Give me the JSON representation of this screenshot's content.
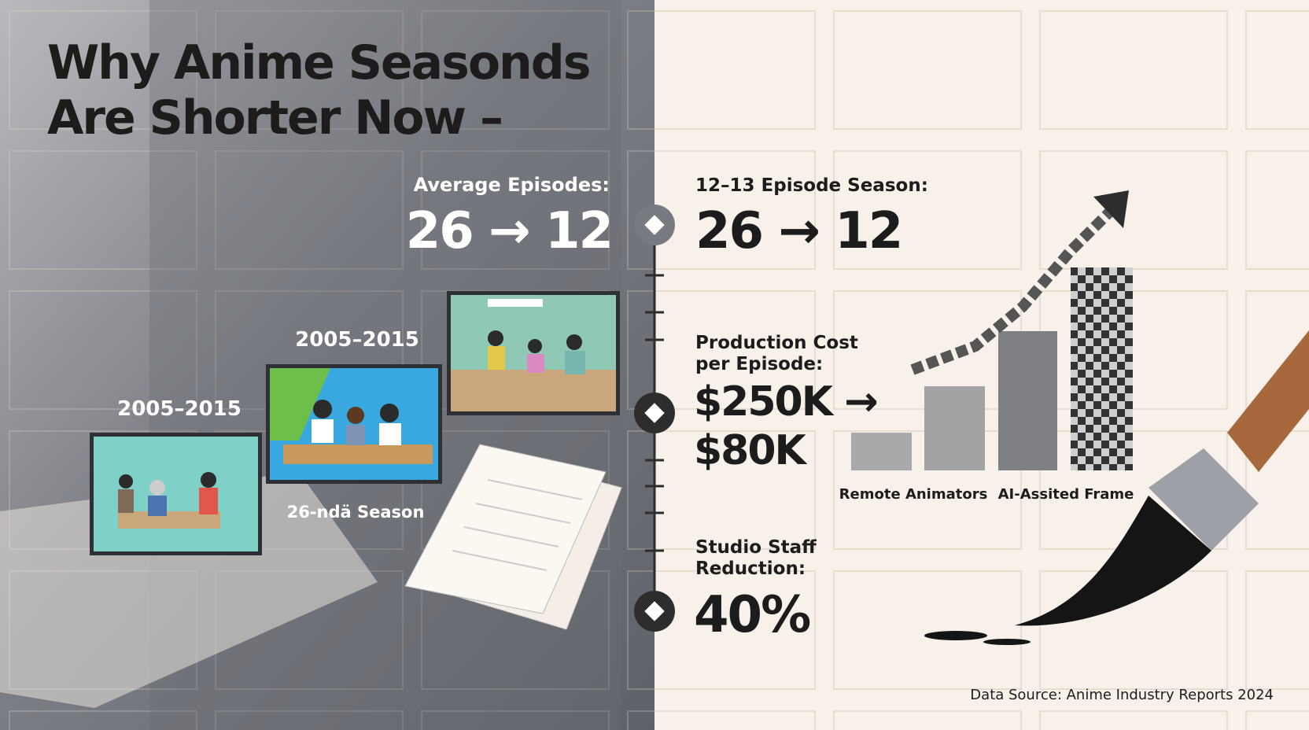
{
  "header": {
    "title_lines": [
      "Why Anime Seasonds",
      "Are Shorter Now –"
    ]
  },
  "left_panel": {
    "stat_label": "Average Episodes:",
    "stat_value": "26 → 12",
    "eras": [
      "2005–2015",
      "2005–2015"
    ],
    "season_label": "26-ndä Season"
  },
  "timeline": [
    {
      "label_lines": [
        "12–13 Episode Season:"
      ],
      "value_lines": [
        "26 → 12"
      ]
    },
    {
      "label_lines": [
        "Production Cost",
        "per Episode:"
      ],
      "value_lines": [
        "$250K →",
        "$80K"
      ]
    },
    {
      "label_lines": [
        "Studio Staff",
        "Reduction:"
      ],
      "value_lines": [
        "40%"
      ]
    }
  ],
  "chart_labels": [
    "Remote Animators",
    "AI-Assited Frame"
  ],
  "footer": {
    "source": "Data Source: Anime Industry Reports 2024"
  }
}
